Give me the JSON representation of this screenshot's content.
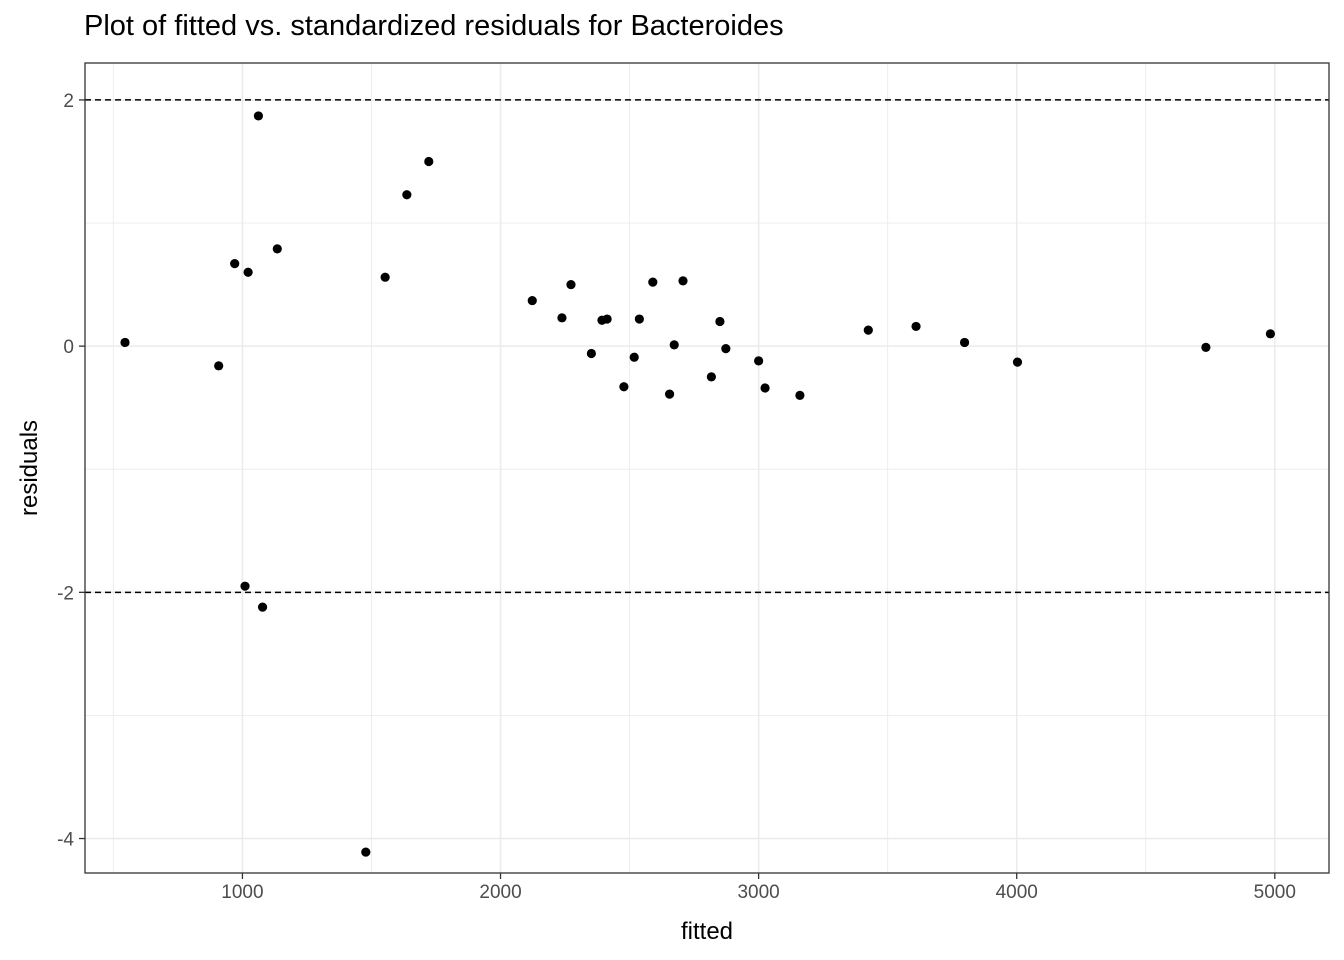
{
  "chart_data": {
    "type": "scatter",
    "title": "Plot of fitted vs. standardized residuals for Bacteroides",
    "xlabel": "fitted",
    "ylabel": "residuals",
    "xlim": [
      390,
      5210
    ],
    "ylim": [
      -4.28,
      2.3
    ],
    "x_ticks": [
      1000,
      2000,
      3000,
      4000,
      5000
    ],
    "y_ticks": [
      2,
      0,
      -2,
      -4
    ],
    "x_tick_labels": [
      "1000",
      "2000",
      "3000",
      "4000",
      "5000"
    ],
    "y_tick_labels": [
      "2",
      "0",
      "-2",
      "-4"
    ],
    "reference_lines_y": [
      2,
      -2
    ],
    "grid": true,
    "point_color": "#000000",
    "points": [
      {
        "x": 545,
        "y": 0.03
      },
      {
        "x": 908,
        "y": -0.16
      },
      {
        "x": 970,
        "y": 0.67
      },
      {
        "x": 1010,
        "y": -1.95
      },
      {
        "x": 1022,
        "y": 0.6
      },
      {
        "x": 1062,
        "y": 1.87
      },
      {
        "x": 1078,
        "y": -2.12
      },
      {
        "x": 1135,
        "y": 0.79
      },
      {
        "x": 1478,
        "y": -4.11
      },
      {
        "x": 1553,
        "y": 0.56
      },
      {
        "x": 1637,
        "y": 1.23
      },
      {
        "x": 1722,
        "y": 1.5
      },
      {
        "x": 2123,
        "y": 0.37
      },
      {
        "x": 2238,
        "y": 0.23
      },
      {
        "x": 2273,
        "y": 0.5
      },
      {
        "x": 2352,
        "y": -0.06
      },
      {
        "x": 2393,
        "y": 0.21
      },
      {
        "x": 2413,
        "y": 0.22
      },
      {
        "x": 2478,
        "y": -0.33
      },
      {
        "x": 2518,
        "y": -0.09
      },
      {
        "x": 2538,
        "y": 0.22
      },
      {
        "x": 2590,
        "y": 0.52
      },
      {
        "x": 2655,
        "y": -0.39
      },
      {
        "x": 2673,
        "y": 0.01
      },
      {
        "x": 2707,
        "y": 0.53
      },
      {
        "x": 2817,
        "y": -0.25
      },
      {
        "x": 2850,
        "y": 0.2
      },
      {
        "x": 2873,
        "y": -0.02
      },
      {
        "x": 3000,
        "y": -0.12
      },
      {
        "x": 3025,
        "y": -0.34
      },
      {
        "x": 3160,
        "y": -0.4
      },
      {
        "x": 3425,
        "y": 0.13
      },
      {
        "x": 3610,
        "y": 0.16
      },
      {
        "x": 3798,
        "y": 0.03
      },
      {
        "x": 4003,
        "y": -0.13
      },
      {
        "x": 4733,
        "y": -0.01
      },
      {
        "x": 4983,
        "y": 0.1
      }
    ]
  }
}
